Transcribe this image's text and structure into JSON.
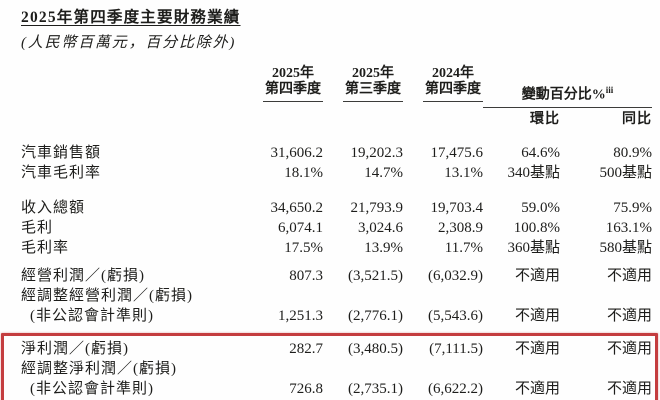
{
  "title": "2025年第四季度主要財務業績",
  "subtitle": "(人民幣百萬元，百分比除外)",
  "table": {
    "columns": [
      {
        "line1": "2025年",
        "line2": "第四季度"
      },
      {
        "line1": "2025年",
        "line2": "第三季度"
      },
      {
        "line1": "2024年",
        "line2": "第四季度"
      }
    ],
    "change_header": "變動百分比%",
    "change_superscript": "iii",
    "subcolumns": [
      "環比",
      "同比"
    ],
    "highlight_color": "#c43d3f",
    "sections": [
      {
        "highlight": false,
        "rows": [
          {
            "label": "汽車銷售額",
            "values": [
              "31,606.2",
              "19,202.3",
              "17,475.6",
              "64.6%",
              "80.9%"
            ]
          },
          {
            "label": "汽車毛利率",
            "values": [
              "18.1%",
              "14.7%",
              "13.1%",
              "340基點",
              "500基點"
            ]
          }
        ]
      },
      {
        "highlight": false,
        "rows": [
          {
            "label": "收入總額",
            "values": [
              "34,650.2",
              "21,793.9",
              "19,703.4",
              "59.0%",
              "75.9%"
            ]
          },
          {
            "label": "毛利",
            "values": [
              "6,074.1",
              "3,024.6",
              "2,308.9",
              "100.8%",
              "163.1%"
            ]
          },
          {
            "label": "毛利率",
            "values": [
              "17.5%",
              "13.9%",
              "11.7%",
              "360基點",
              "580基點"
            ]
          }
        ]
      },
      {
        "highlight": false,
        "rows": [
          {
            "label": "經營利潤／(虧損)",
            "values": [
              "807.3",
              "(3,521.5)",
              "(6,032.9)",
              "不適用",
              "不適用"
            ]
          },
          {
            "label_lines": [
              "經調整經營利潤／(虧損)",
              "(非公認會計準則)"
            ],
            "values": [
              "1,251.3",
              "(2,776.1)",
              "(5,543.6)",
              "不適用",
              "不適用"
            ]
          }
        ]
      },
      {
        "highlight": true,
        "rows": [
          {
            "label": "淨利潤／(虧損)",
            "values": [
              "282.7",
              "(3,480.5)",
              "(7,111.5)",
              "不適用",
              "不適用"
            ]
          },
          {
            "label_lines": [
              "經調整淨利潤／(虧損)",
              "(非公認會計準則)"
            ],
            "values": [
              "726.8",
              "(2,735.1)",
              "(6,622.2)",
              "不適用",
              "不適用"
            ]
          }
        ]
      }
    ]
  }
}
